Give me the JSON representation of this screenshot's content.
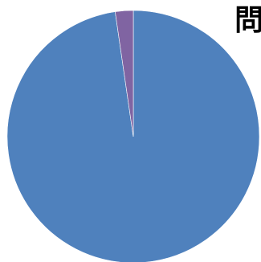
{
  "chart_data": {
    "type": "pie",
    "title": "問",
    "slices": [
      {
        "value": 97.7,
        "color": "#4f81bd"
      },
      {
        "value": 2.3,
        "color": "#8064a2"
      }
    ],
    "start_angle_deg": 0,
    "direction": "clockwise"
  }
}
